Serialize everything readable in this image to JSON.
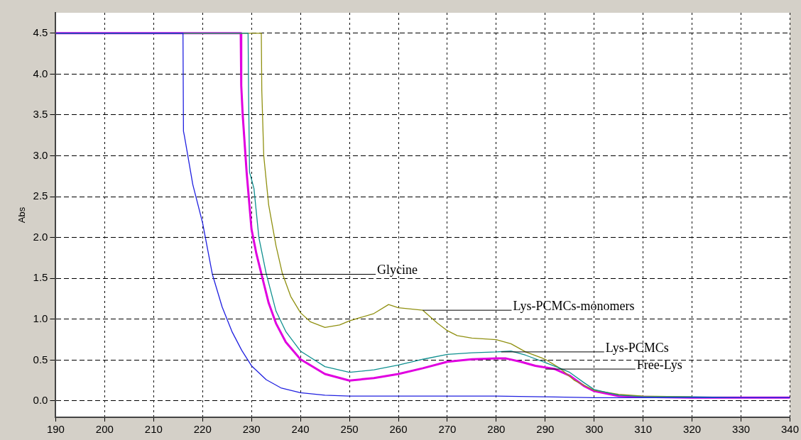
{
  "chart_data": {
    "type": "line",
    "ylabel": "Abs",
    "xlim": [
      190,
      340
    ],
    "xticks": [
      190,
      200,
      210,
      220,
      230,
      240,
      250,
      260,
      270,
      280,
      290,
      300,
      310,
      320,
      330,
      340
    ],
    "ylim": [
      -0.2,
      4.75
    ],
    "yticks": [
      {
        "value": 0,
        "label": "0.0"
      },
      {
        "value": 0.5,
        "label": "0.5"
      },
      {
        "value": 1,
        "label": "1.0"
      },
      {
        "value": 1.5,
        "label": "1.5"
      },
      {
        "value": 2,
        "label": "2.0"
      },
      {
        "value": 2.5,
        "label": "2.5"
      },
      {
        "value": 3,
        "label": "3.0"
      },
      {
        "value": 3.5,
        "label": "3.5"
      },
      {
        "value": 4,
        "label": "4.0"
      },
      {
        "value": 4.5,
        "label": "4.5"
      }
    ],
    "grid": true,
    "line_style": "solid",
    "marker": "none",
    "series": [
      {
        "color": "#2020e0",
        "x": [
          190,
          216,
          216.1,
          216.3,
          218,
          220,
          222,
          224,
          226,
          228,
          230,
          233,
          236,
          240,
          245,
          250,
          260,
          270,
          280,
          290,
          300,
          310,
          320,
          330,
          340
        ],
        "values": [
          4.5,
          4.5,
          3.3,
          3.24,
          2.65,
          2.18,
          1.55,
          1.15,
          0.85,
          0.62,
          0.43,
          0.26,
          0.16,
          0.1,
          0.07,
          0.06,
          0.06,
          0.06,
          0.06,
          0.05,
          0.04,
          0.04,
          0.04,
          0.04,
          0.04
        ]
      },
      {
        "color": "#109090",
        "x": [
          190,
          229.3,
          229.4,
          229.6,
          230.5,
          231.5,
          233,
          235,
          237,
          240,
          245,
          250,
          255,
          260,
          265,
          270,
          275,
          280,
          283,
          286,
          290,
          293,
          295,
          298,
          300,
          305,
          310,
          320,
          330,
          340
        ],
        "values": [
          4.5,
          4.5,
          3.77,
          2.8,
          2.6,
          2.0,
          1.56,
          1.1,
          0.85,
          0.61,
          0.42,
          0.35,
          0.38,
          0.44,
          0.51,
          0.57,
          0.59,
          0.6,
          0.61,
          0.56,
          0.47,
          0.4,
          0.35,
          0.22,
          0.14,
          0.07,
          0.05,
          0.05,
          0.04,
          0.04
        ]
      },
      {
        "color": "#909010",
        "x": [
          190,
          232,
          232.1,
          232.5,
          233.5,
          235,
          236.3,
          238,
          240,
          242,
          245,
          248,
          250,
          255,
          258,
          260,
          265,
          268,
          270,
          272,
          275,
          280,
          283,
          286,
          290,
          293,
          296,
          300,
          305,
          310,
          320
        ],
        "values": [
          4.5,
          4.5,
          3.8,
          3.0,
          2.4,
          1.9,
          1.56,
          1.28,
          1.08,
          0.97,
          0.9,
          0.93,
          0.98,
          1.07,
          1.18,
          1.14,
          1.11,
          0.95,
          0.86,
          0.8,
          0.77,
          0.75,
          0.7,
          0.6,
          0.51,
          0.4,
          0.25,
          0.13,
          0.08,
          0.06,
          0.05
        ]
      },
      {
        "color": "#e000e0",
        "x": [
          190,
          227.8,
          227.9,
          228.2,
          229,
          230,
          231,
          232,
          233.5,
          235,
          237,
          240,
          245,
          250,
          255,
          260,
          265,
          270,
          275,
          280,
          282,
          285,
          288,
          290,
          292,
          295,
          298,
          300,
          305,
          310,
          320,
          330,
          340
        ],
        "values": [
          4.5,
          4.5,
          3.86,
          3.5,
          2.8,
          2.1,
          1.8,
          1.56,
          1.2,
          0.95,
          0.72,
          0.51,
          0.33,
          0.25,
          0.28,
          0.33,
          0.4,
          0.48,
          0.51,
          0.52,
          0.52,
          0.48,
          0.43,
          0.41,
          0.39,
          0.31,
          0.18,
          0.12,
          0.06,
          0.05,
          0.04,
          0.04,
          0.04
        ]
      }
    ],
    "annotations": [
      {
        "text": "Glycine",
        "x": 222,
        "y": 1.55
      },
      {
        "text": "Lys-PCMCs-monomers",
        "x": 265,
        "y": 1.11
      },
      {
        "text": "Lys-PCMCs",
        "x": 281,
        "y": 0.6
      },
      {
        "text": "Free-Lys",
        "x": 290,
        "y": 0.39
      }
    ]
  }
}
